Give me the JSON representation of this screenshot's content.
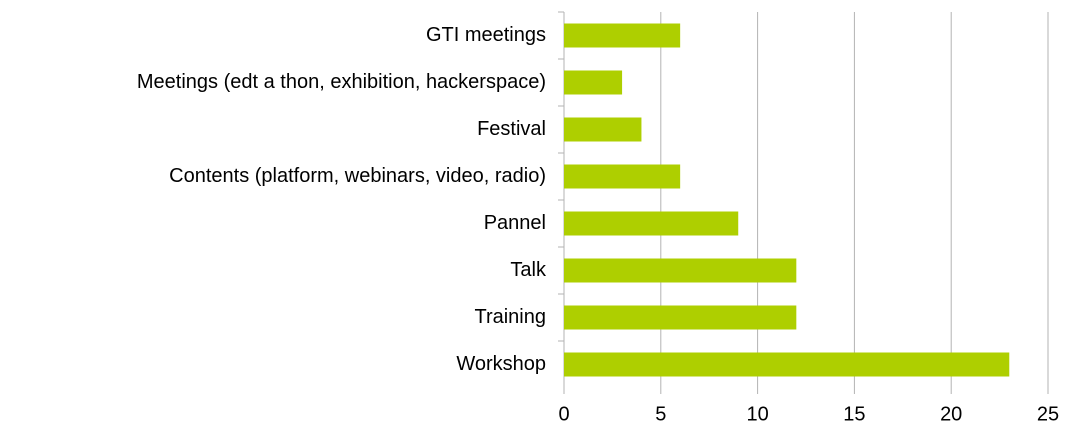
{
  "chart_data": {
    "type": "bar",
    "orientation": "horizontal",
    "categories": [
      "GTI meetings",
      "Meetings (edt a thon, exhibition, hackerspace)",
      "Festival",
      "Contents (platform, webinars, video, radio)",
      "Pannel",
      "Talk",
      "Training",
      "Workshop"
    ],
    "values": [
      6,
      3,
      4,
      6,
      9,
      12,
      12,
      23
    ],
    "color": "#aecf00",
    "xlim": [
      0,
      25
    ],
    "xticks": [
      0,
      5,
      10,
      15,
      20,
      25
    ],
    "grid": true
  }
}
